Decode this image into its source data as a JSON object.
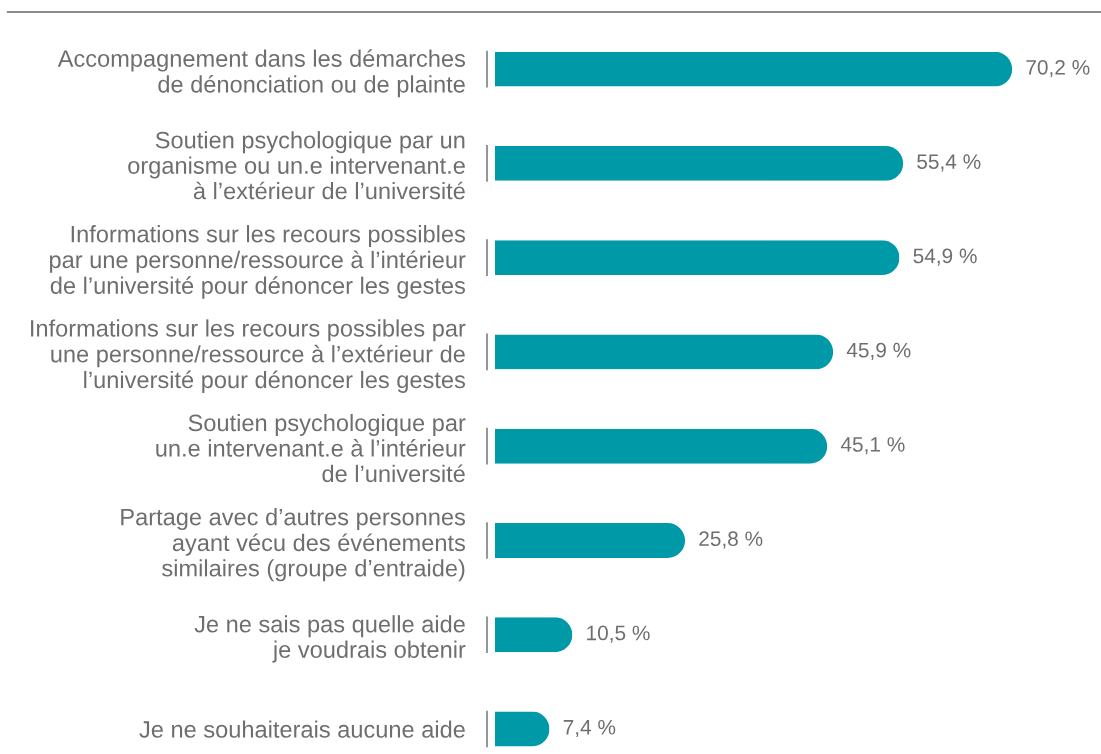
{
  "chart_data": {
    "type": "bar",
    "orientation": "horizontal",
    "categories": [
      "Accompagnement dans les démarches\nde dénonciation ou de plainte",
      "Soutien psychologique par un\norganisme ou un.e intervenant.e\nà l’extérieur de l’université",
      "Informations sur les recours possibles\npar une personne/ressource à l’intérieur\nde l’université pour dénoncer les gestes",
      "Informations sur les recours possibles par\nune personne/ressource à l’extérieur de\nl’université pour dénoncer les gestes",
      "Soutien psychologique par\nun.e intervenant.e à l’intérieur\nde l’université",
      "Partage avec d’autres personnes\nayant vécu des événements\nsimilaires (groupe d’entraide)",
      "Je ne sais pas quelle aide\nje voudrais obtenir",
      "Je ne souhaiterais aucune aide"
    ],
    "values": [
      70.2,
      55.4,
      54.9,
      45.9,
      45.1,
      25.8,
      10.5,
      7.4
    ],
    "color": "#0099a8",
    "value_labels": [
      "70,2 %",
      "55,4 %",
      "54,9 %",
      "45,9 %",
      "45,1 %",
      "25,8 %",
      "10,5 %",
      "7,4 %"
    ],
    "tick_labels": "y",
    "grid": false
  }
}
